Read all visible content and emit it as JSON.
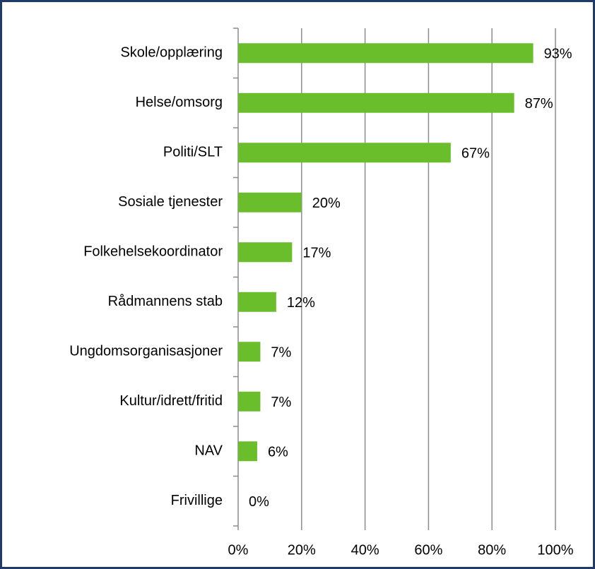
{
  "chart_data": {
    "type": "bar",
    "orientation": "horizontal",
    "categories": [
      "Skole/opplæring",
      "Helse/omsorg",
      "Politi/SLT",
      "Sosiale tjenester",
      "Folkehelsekoordinator",
      "Rådmannens stab",
      "Ungdomsorganisasjoner",
      "Kultur/idrett/fritid",
      "NAV",
      "Frivillige"
    ],
    "values": [
      93,
      87,
      67,
      20,
      17,
      12,
      7,
      7,
      6,
      0
    ],
    "value_labels": [
      "93%",
      "87%",
      "67%",
      "20%",
      "17%",
      "12%",
      "7%",
      "7%",
      "6%",
      "0%"
    ],
    "color": "#6abd2b",
    "xlim": [
      0,
      100
    ],
    "xticks": [
      {
        "value": 0,
        "label": "0%"
      },
      {
        "value": 20,
        "label": "20%"
      },
      {
        "value": 40,
        "label": "40%"
      },
      {
        "value": 60,
        "label": "60%"
      },
      {
        "value": 80,
        "label": "80%"
      },
      {
        "value": 100,
        "label": "100%"
      }
    ],
    "grid": true
  }
}
